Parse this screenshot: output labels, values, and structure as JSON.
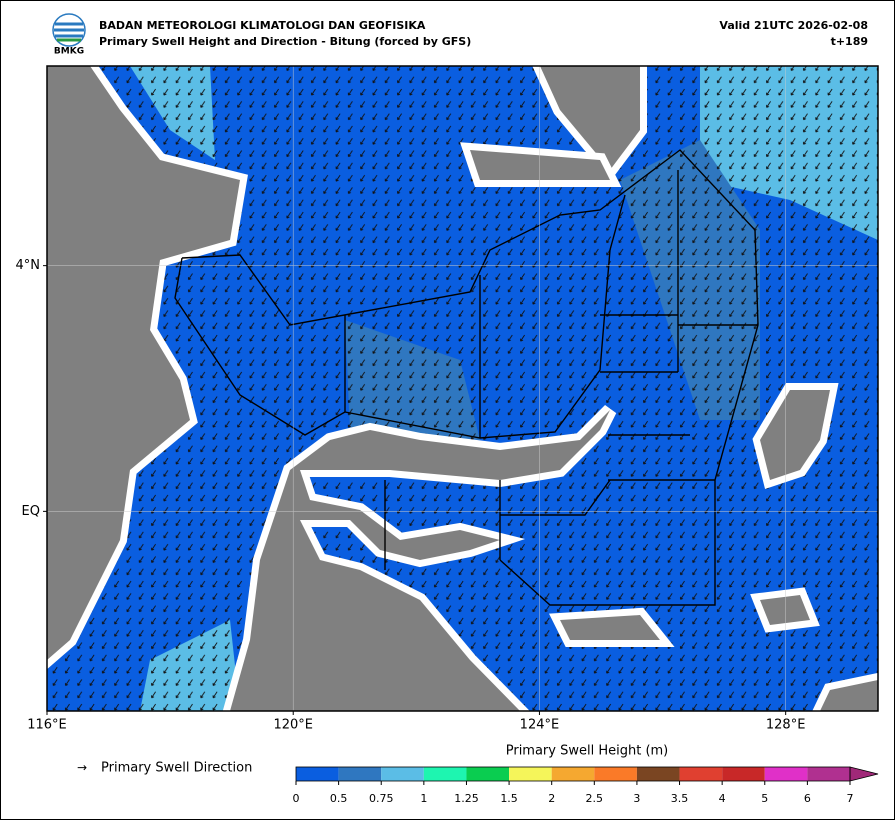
{
  "header": {
    "logo_text": "BMKG",
    "title": "BADAN METEOROLOGI KLIMATOLOGI DAN GEOFISIKA",
    "subtitle": "Primary Swell Height and Direction - Bitung (forced by GFS)",
    "valid": "Valid 21UTC 2026-02-08",
    "lead": "t+189"
  },
  "map": {
    "xlim": [
      116,
      129.5
    ],
    "ylim": [
      -3.25,
      7.25
    ],
    "xticks": [
      {
        "value": 116,
        "label": "116°E"
      },
      {
        "value": 120,
        "label": "120°E"
      },
      {
        "value": 124,
        "label": "124°E"
      },
      {
        "value": 128,
        "label": "128°E"
      }
    ],
    "yticks": [
      {
        "value": 4,
        "label": "4°N"
      },
      {
        "value": 0,
        "label": "EQ"
      }
    ]
  },
  "legend": {
    "label": "Primary Swell Direction"
  },
  "colorbar": {
    "title": "Primary Swell Height (m)",
    "ticks": [
      0,
      0.5,
      0.75,
      1,
      1.25,
      1.5,
      2,
      2.5,
      3,
      3.5,
      4,
      5,
      6,
      7
    ],
    "colors": [
      "#0a5ee0",
      "#2f77c0",
      "#5bbde6",
      "#1ef5b0",
      "#0acd50",
      "#f5f55a",
      "#f5a830",
      "#fa7a28",
      "#7a4522",
      "#e04030",
      "#c82828",
      "#e030c8",
      "#b03090"
    ],
    "extend_color": "#a02878"
  }
}
